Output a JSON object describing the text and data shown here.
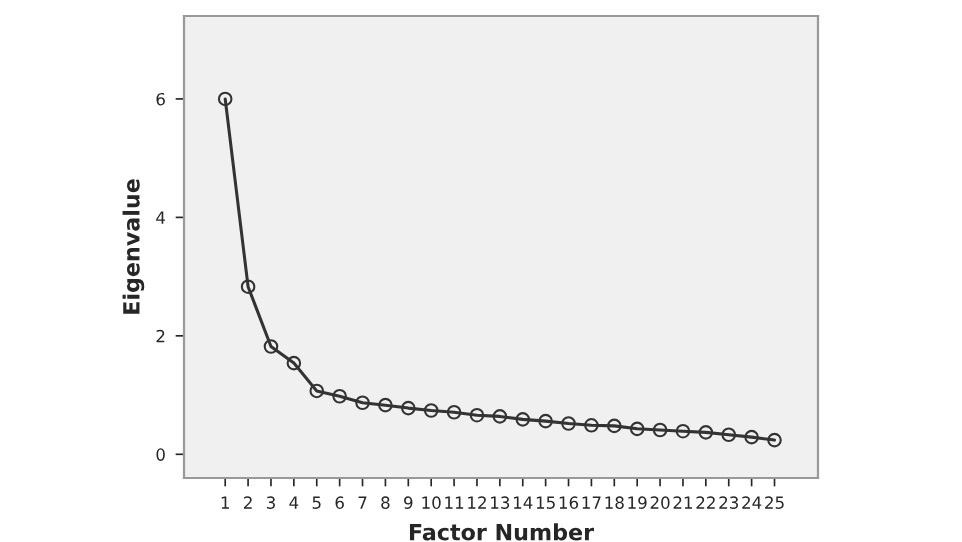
{
  "chart_data": {
    "type": "line",
    "xlabel": "Factor Number",
    "ylabel": "Eigenvalue",
    "x": [
      1,
      2,
      3,
      4,
      5,
      6,
      7,
      8,
      9,
      10,
      11,
      12,
      13,
      14,
      15,
      16,
      17,
      18,
      19,
      20,
      21,
      22,
      23,
      24,
      25
    ],
    "values": [
      6.0,
      2.83,
      1.82,
      1.54,
      1.07,
      0.98,
      0.87,
      0.83,
      0.78,
      0.74,
      0.71,
      0.66,
      0.64,
      0.59,
      0.56,
      0.52,
      0.49,
      0.48,
      0.43,
      0.41,
      0.39,
      0.37,
      0.33,
      0.29,
      0.24
    ],
    "color": "#333333",
    "marker": "circle",
    "line_style": "solid",
    "grid": false,
    "xlim": [
      -0.8,
      26.9
    ],
    "xticks": [
      1,
      2,
      3,
      4,
      5,
      6,
      7,
      8,
      9,
      10,
      11,
      12,
      13,
      14,
      15,
      16,
      17,
      18,
      19,
      20,
      21,
      22,
      23,
      24,
      25
    ],
    "ylim": [
      -0.4,
      7.4
    ],
    "yticks": [
      0,
      2,
      4,
      6
    ]
  }
}
